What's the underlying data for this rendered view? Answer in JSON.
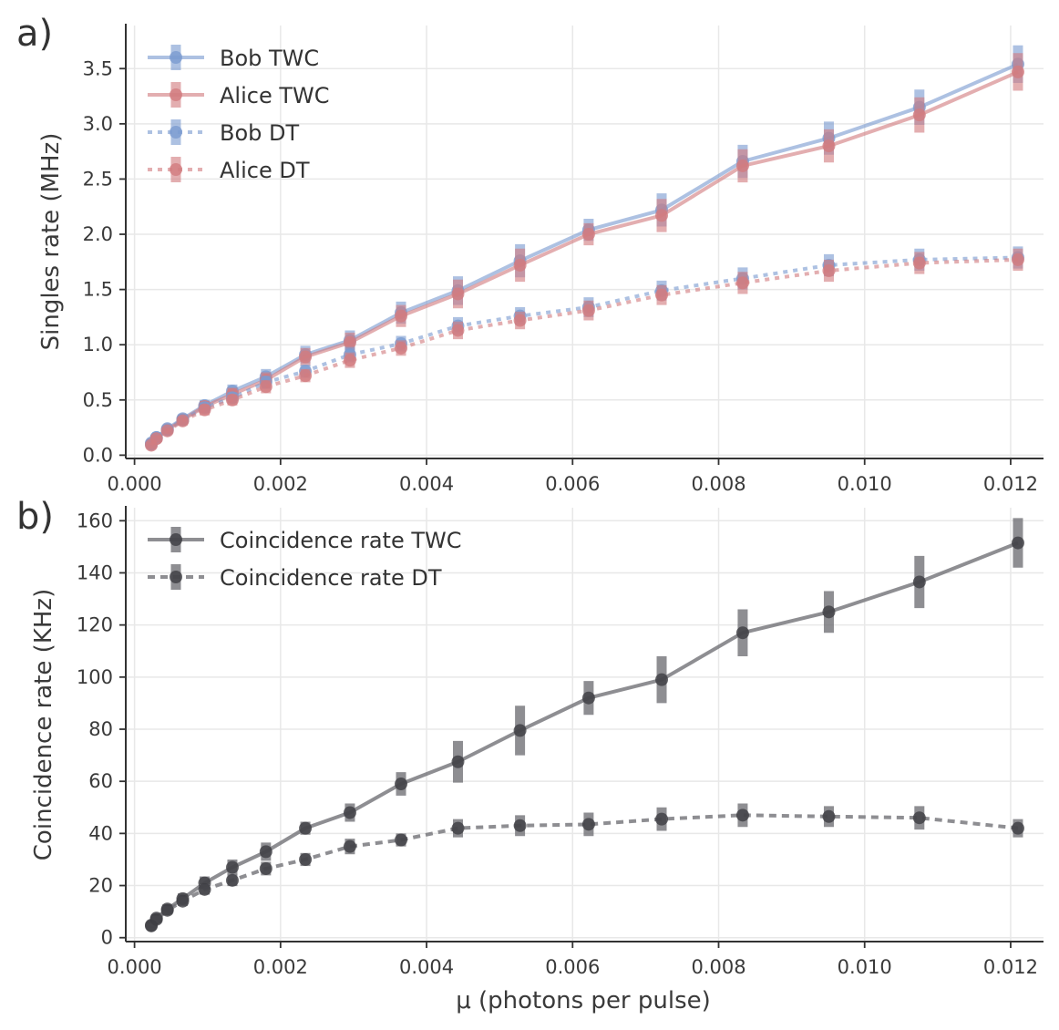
{
  "chart_data": [
    {
      "type": "line",
      "panel_label": "a)",
      "xlabel": "",
      "ylabel": "Singles rate (MHz)",
      "xlim": [
        -0.00012,
        0.01245
      ],
      "ylim": [
        -0.03,
        3.89
      ],
      "xticks": [
        0.0,
        0.002,
        0.004,
        0.006,
        0.008,
        0.01,
        0.012
      ],
      "xtick_labels": [
        "0.000",
        "0.002",
        "0.004",
        "0.006",
        "0.008",
        "0.010",
        "0.012"
      ],
      "yticks": [
        0.0,
        0.5,
        1.0,
        1.5,
        2.0,
        2.5,
        3.0,
        3.5
      ],
      "ytick_labels": [
        "0.0",
        "0.5",
        "1.0",
        "1.5",
        "2.0",
        "2.5",
        "3.0",
        "3.5"
      ],
      "grid": true,
      "legend": "top-left",
      "series": [
        {
          "name": "Bob TWC",
          "color": "#7b9bd1",
          "style": "solid",
          "x": [
            0.00023,
            0.0003,
            0.00045,
            0.00066,
            0.00096,
            0.00134,
            0.0018,
            0.00234,
            0.00295,
            0.00365,
            0.00443,
            0.00528,
            0.00622,
            0.00722,
            0.00833,
            0.00951,
            0.01075,
            0.0121
          ],
          "y": [
            0.11,
            0.16,
            0.24,
            0.33,
            0.45,
            0.58,
            0.71,
            0.91,
            1.04,
            1.29,
            1.49,
            1.76,
            2.04,
            2.22,
            2.66,
            2.87,
            3.15,
            3.54
          ],
          "yerr": [
            0.03,
            0.03,
            0.03,
            0.04,
            0.05,
            0.06,
            0.07,
            0.08,
            0.09,
            0.1,
            0.13,
            0.15,
            0.1,
            0.15,
            0.15,
            0.15,
            0.16,
            0.17
          ]
        },
        {
          "name": "Alice TWC",
          "color": "#d27c80",
          "style": "solid",
          "x": [
            0.00023,
            0.0003,
            0.00045,
            0.00066,
            0.00096,
            0.00134,
            0.0018,
            0.00234,
            0.00295,
            0.00365,
            0.00443,
            0.00528,
            0.00622,
            0.00722,
            0.00833,
            0.00951,
            0.01075,
            0.0121
          ],
          "y": [
            0.1,
            0.15,
            0.23,
            0.32,
            0.44,
            0.55,
            0.68,
            0.89,
            1.02,
            1.26,
            1.46,
            1.72,
            2.0,
            2.17,
            2.62,
            2.8,
            3.08,
            3.47
          ],
          "yerr": [
            0.03,
            0.03,
            0.03,
            0.04,
            0.05,
            0.06,
            0.07,
            0.08,
            0.09,
            0.1,
            0.13,
            0.15,
            0.1,
            0.15,
            0.15,
            0.15,
            0.16,
            0.17
          ]
        },
        {
          "name": "Bob DT",
          "color": "#7b9bd1",
          "style": "dotted",
          "x": [
            0.00023,
            0.0003,
            0.00045,
            0.00066,
            0.00096,
            0.00134,
            0.0018,
            0.00234,
            0.00295,
            0.00365,
            0.00443,
            0.00528,
            0.00622,
            0.00722,
            0.00833,
            0.00951,
            0.01075,
            0.0121
          ],
          "y": [
            0.1,
            0.16,
            0.23,
            0.32,
            0.43,
            0.52,
            0.66,
            0.76,
            0.91,
            1.01,
            1.17,
            1.26,
            1.34,
            1.49,
            1.6,
            1.72,
            1.77,
            1.79
          ],
          "yerr": [
            0.03,
            0.03,
            0.03,
            0.04,
            0.05,
            0.05,
            0.06,
            0.06,
            0.07,
            0.07,
            0.08,
            0.08,
            0.09,
            0.09,
            0.1,
            0.1,
            0.1,
            0.1
          ]
        },
        {
          "name": "Alice DT",
          "color": "#d27c80",
          "style": "dotted",
          "x": [
            0.00023,
            0.0003,
            0.00045,
            0.00066,
            0.00096,
            0.00134,
            0.0018,
            0.00234,
            0.00295,
            0.00365,
            0.00443,
            0.00528,
            0.00622,
            0.00722,
            0.00833,
            0.00951,
            0.01075,
            0.0121
          ],
          "y": [
            0.09,
            0.15,
            0.22,
            0.31,
            0.41,
            0.5,
            0.62,
            0.72,
            0.86,
            0.97,
            1.13,
            1.22,
            1.31,
            1.45,
            1.56,
            1.67,
            1.74,
            1.77
          ],
          "yerr": [
            0.03,
            0.03,
            0.03,
            0.04,
            0.05,
            0.05,
            0.06,
            0.06,
            0.07,
            0.07,
            0.08,
            0.08,
            0.09,
            0.09,
            0.1,
            0.1,
            0.1,
            0.1
          ]
        }
      ]
    },
    {
      "type": "line",
      "panel_label": "b)",
      "xlabel": "μ (photons per pulse)",
      "ylabel": "Coincidence rate (KHz)",
      "xlim": [
        -0.00012,
        0.01245
      ],
      "ylim": [
        -1.5,
        165
      ],
      "xticks": [
        0.0,
        0.002,
        0.004,
        0.006,
        0.008,
        0.01,
        0.012
      ],
      "xtick_labels": [
        "0.000",
        "0.002",
        "0.004",
        "0.006",
        "0.008",
        "0.010",
        "0.012"
      ],
      "yticks": [
        0,
        20,
        40,
        60,
        80,
        100,
        120,
        140,
        160
      ],
      "ytick_labels": [
        "0",
        "20",
        "40",
        "60",
        "80",
        "100",
        "120",
        "140",
        "160"
      ],
      "grid": true,
      "legend": "top-left",
      "series": [
        {
          "name": "Coincidence rate TWC",
          "color": "#6e6e73",
          "style": "solid",
          "x": [
            0.00023,
            0.0003,
            0.00045,
            0.00066,
            0.00096,
            0.00134,
            0.0018,
            0.00234,
            0.00295,
            0.00365,
            0.00443,
            0.00528,
            0.00622,
            0.00722,
            0.00833,
            0.00951,
            0.01075,
            0.0121
          ],
          "y": [
            4.8,
            7.5,
            11,
            15,
            21,
            27,
            33,
            42,
            48,
            59,
            67.5,
            79.5,
            92,
            99,
            117,
            125,
            136.5,
            151.5
          ],
          "yerr": [
            1.2,
            1.5,
            1.8,
            2.0,
            2.5,
            3.0,
            3.5,
            2.5,
            3.5,
            4.5,
            8.0,
            9.5,
            6.5,
            9.0,
            9.0,
            8.0,
            10.0,
            9.5
          ]
        },
        {
          "name": "Coincidence rate DT",
          "color": "#6e6e73",
          "style": "dashed",
          "x": [
            0.00023,
            0.0003,
            0.00045,
            0.00066,
            0.00096,
            0.00134,
            0.0018,
            0.00234,
            0.00295,
            0.00365,
            0.00443,
            0.00528,
            0.00622,
            0.00722,
            0.00833,
            0.00951,
            0.01075,
            0.0121
          ],
          "y": [
            4.5,
            7.0,
            10.5,
            14,
            18.5,
            22,
            26.5,
            30,
            35,
            37.5,
            42,
            43,
            43.5,
            45.5,
            47,
            46.5,
            46,
            42
          ],
          "yerr": [
            1.2,
            1.4,
            1.6,
            1.8,
            2.0,
            2.2,
            2.6,
            2.5,
            3.0,
            2.5,
            3.5,
            4.0,
            4.5,
            4.5,
            4.5,
            4.0,
            4.5,
            3.5
          ]
        }
      ]
    }
  ]
}
